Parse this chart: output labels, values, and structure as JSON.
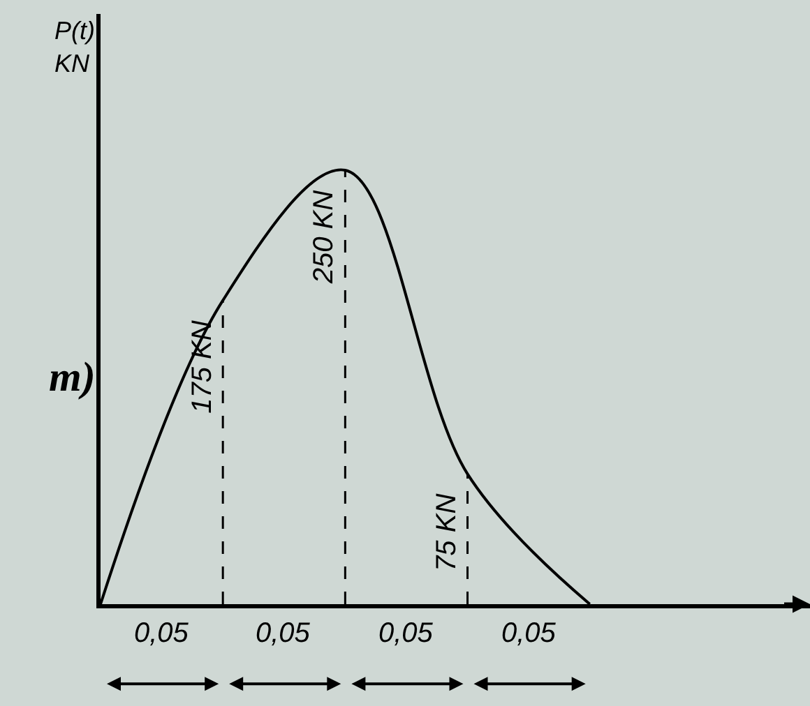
{
  "chart_data": {
    "type": "line",
    "ylabel": "P(t)\nKN",
    "categories": [
      null,
      null,
      null,
      null,
      null
    ],
    "series": [
      {
        "color": "#000000",
        "values": [
          0,
          175,
          250,
          75,
          0
        ],
        "value_labels": [
          null,
          "175 KN",
          "250 KN",
          "75 KN",
          null
        ]
      }
    ],
    "ylim": [
      0,
      340
    ],
    "marker": "none",
    "line_style": "solid",
    "annotations": [
      "m)",
      "0,05",
      "0,05",
      "0,05",
      "0,05"
    ]
  }
}
